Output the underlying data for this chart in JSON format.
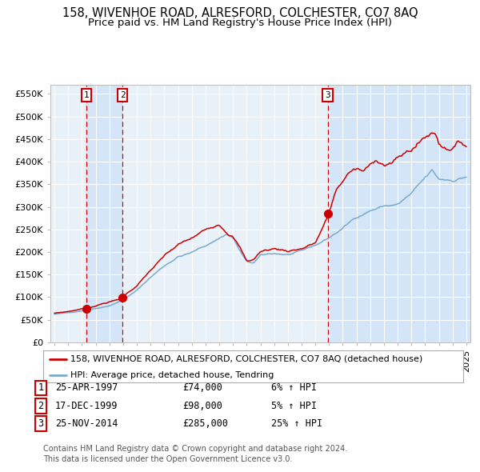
{
  "title": "158, WIVENHOE ROAD, ALRESFORD, COLCHESTER, CO7 8AQ",
  "subtitle": "Price paid vs. HM Land Registry's House Price Index (HPI)",
  "ylim": [
    0,
    570000
  ],
  "xlim": [
    1994.7,
    2025.3
  ],
  "yticks": [
    0,
    50000,
    100000,
    150000,
    200000,
    250000,
    300000,
    350000,
    400000,
    450000,
    500000,
    550000
  ],
  "ytick_labels": [
    "£0",
    "£50K",
    "£100K",
    "£150K",
    "£200K",
    "£250K",
    "£300K",
    "£350K",
    "£400K",
    "£450K",
    "£500K",
    "£550K"
  ],
  "xticks": [
    1995,
    1996,
    1997,
    1998,
    1999,
    2000,
    2001,
    2002,
    2003,
    2004,
    2005,
    2006,
    2007,
    2008,
    2009,
    2010,
    2011,
    2012,
    2013,
    2014,
    2015,
    2016,
    2017,
    2018,
    2019,
    2020,
    2021,
    2022,
    2023,
    2024,
    2025
  ],
  "background_color": "#ffffff",
  "plot_bg_color": "#e8f0f8",
  "grid_color": "#ffffff",
  "sale_dates": [
    1997.32,
    1999.96,
    2014.9
  ],
  "sale_prices": [
    74000,
    98000,
    285000
  ],
  "sale_labels": [
    "1",
    "2",
    "3"
  ],
  "vline_color": "#cc0000",
  "vline_shade_color": "#d0e4f7",
  "dot_color": "#cc0000",
  "red_line_color": "#cc0000",
  "blue_line_color": "#7aabcc",
  "legend_label_red": "158, WIVENHOE ROAD, ALRESFORD, COLCHESTER, CO7 8AQ (detached house)",
  "legend_label_blue": "HPI: Average price, detached house, Tendring",
  "table_entries": [
    {
      "label": "1",
      "date": "25-APR-1997",
      "price": "£74,000",
      "hpi": "6% ↑ HPI"
    },
    {
      "label": "2",
      "date": "17-DEC-1999",
      "price": "£98,000",
      "hpi": "5% ↑ HPI"
    },
    {
      "label": "3",
      "date": "25-NOV-2014",
      "price": "£285,000",
      "hpi": "25% ↑ HPI"
    }
  ],
  "footer": "Contains HM Land Registry data © Crown copyright and database right 2024.\nThis data is licensed under the Open Government Licence v3.0.",
  "title_fontsize": 10.5,
  "subtitle_fontsize": 9.5,
  "tick_fontsize": 8,
  "legend_fontsize": 8,
  "table_fontsize": 8.5,
  "footer_fontsize": 7
}
